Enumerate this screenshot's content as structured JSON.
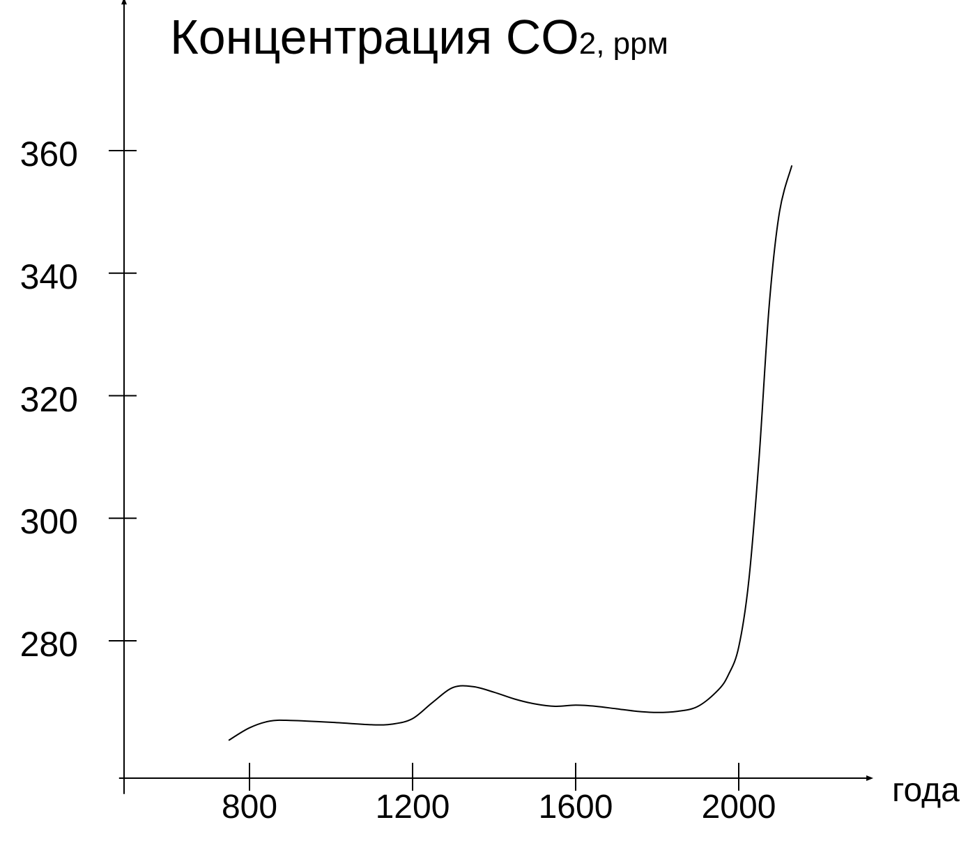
{
  "chart_data": {
    "type": "line",
    "title": {
      "main": "Концентрация CO",
      "sub": "2, ppм"
    },
    "xlabel": "года",
    "ylabel": "",
    "x_ticks": [
      800,
      1200,
      1600,
      2000
    ],
    "x_tick_labels": [
      "800",
      "1200",
      "1600",
      "2000"
    ],
    "y_ticks": [
      280,
      300,
      320,
      340,
      360
    ],
    "y_tick_labels": [
      "280",
      "300",
      "320",
      "340",
      "360"
    ],
    "xlim": [
      480,
      2330
    ],
    "ylim": [
      255,
      385
    ],
    "grid": false,
    "series": [
      {
        "x": [
          750,
          800,
          850,
          900,
          1000,
          1100,
          1150,
          1200,
          1250,
          1300,
          1350,
          1400,
          1450,
          1500,
          1550,
          1600,
          1650,
          1700,
          1750,
          1800,
          1850,
          1900,
          1950,
          1975,
          2000,
          2025,
          2050,
          2075,
          2100,
          2130
        ],
        "y": [
          263.8,
          265.8,
          266.9,
          267.0,
          266.7,
          266.3,
          266.4,
          267.3,
          270.0,
          272.4,
          272.5,
          271.6,
          270.5,
          269.7,
          269.3,
          269.5,
          269.3,
          268.9,
          268.5,
          268.3,
          268.5,
          269.3,
          272.0,
          274.5,
          279.0,
          290.0,
          310.0,
          335.0,
          350.0,
          357.5
        ]
      }
    ],
    "colors": {
      "line": "#000000",
      "axis": "#000000",
      "background": "#ffffff"
    }
  }
}
